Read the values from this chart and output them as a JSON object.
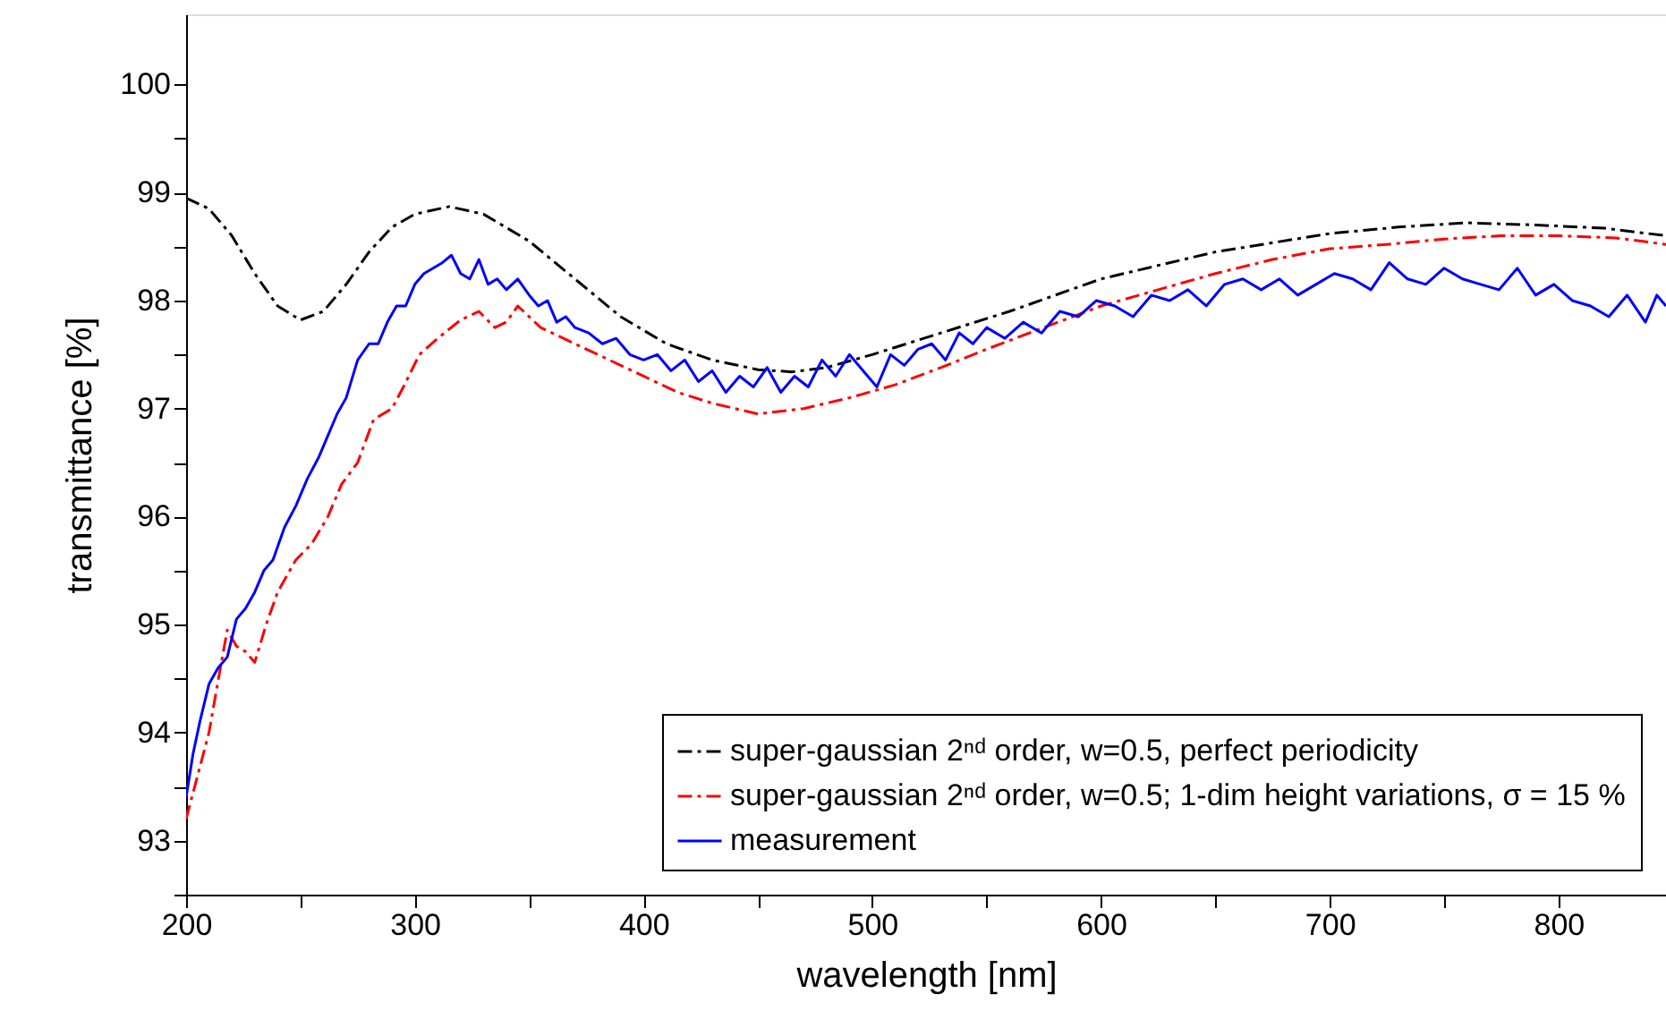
{
  "chart_data": {
    "type": "line",
    "xlabel": "wavelength [nm]",
    "ylabel": "transmittance [%]",
    "xlim": [
      200,
      847
    ],
    "ylim": [
      92.5,
      100.65
    ],
    "xticks": [
      200,
      {
        "value": 250,
        "label": null
      },
      300,
      {
        "value": 350,
        "label": null
      },
      400,
      {
        "value": 450,
        "label": null
      },
      500,
      {
        "value": 550,
        "label": null
      },
      600,
      {
        "value": 650,
        "label": null
      },
      700,
      {
        "value": 750,
        "label": null
      },
      800
    ],
    "yticks": [
      {
        "value": 92.5,
        "label": null
      },
      93,
      {
        "value": 93.5,
        "label": null
      },
      94,
      {
        "value": 94.5,
        "label": null
      },
      95,
      {
        "value": 95.5,
        "label": null
      },
      96,
      {
        "value": 96.5,
        "label": null
      },
      97,
      {
        "value": 97.5,
        "label": null
      },
      98,
      {
        "value": 98.5,
        "label": null
      },
      99,
      {
        "value": 99.5,
        "label": null
      },
      100
    ],
    "grid": false,
    "legend": "bottom right",
    "series": [
      {
        "name": "super-gaussian 2ⁿᵈ order, w=0.5, perfect periodicity",
        "color": "#000000",
        "line_style": "dashdot",
        "x": [
          200,
          210,
          220,
          230,
          240,
          250,
          260,
          270,
          280,
          290,
          300,
          315,
          330,
          350,
          370,
          390,
          410,
          430,
          450,
          465,
          480,
          500,
          530,
          560,
          600,
          650,
          700,
          730,
          760,
          790,
          820,
          847
        ],
        "values": [
          98.95,
          98.85,
          98.6,
          98.25,
          97.95,
          97.82,
          97.9,
          98.15,
          98.45,
          98.68,
          98.8,
          98.87,
          98.8,
          98.55,
          98.2,
          97.85,
          97.6,
          97.45,
          97.36,
          97.34,
          97.38,
          97.5,
          97.7,
          97.9,
          98.2,
          98.45,
          98.62,
          98.68,
          98.72,
          98.7,
          98.67,
          98.6
        ]
      },
      {
        "name": "super-gaussian 2ⁿᵈ order, w=0.5; 1-dim height variations, σ = 15 %",
        "color": "#ff0000",
        "line_style": "dashdot",
        "x": [
          200,
          205,
          210,
          215,
          218,
          222,
          226,
          230,
          235,
          240,
          248,
          255,
          262,
          268,
          275,
          282,
          290,
          295,
          302,
          310,
          320,
          328,
          335,
          340,
          345,
          355,
          370,
          385,
          400,
          415,
          430,
          450,
          470,
          490,
          510,
          530,
          550,
          575,
          600,
          625,
          650,
          675,
          700,
          725,
          750,
          775,
          800,
          825,
          847
        ],
        "values": [
          93.2,
          93.6,
          94.0,
          94.6,
          94.95,
          94.8,
          94.75,
          94.65,
          95.0,
          95.3,
          95.6,
          95.75,
          96.0,
          96.3,
          96.5,
          96.9,
          97.0,
          97.2,
          97.5,
          97.65,
          97.82,
          97.9,
          97.75,
          97.8,
          97.95,
          97.75,
          97.6,
          97.45,
          97.3,
          97.15,
          97.05,
          96.95,
          97.0,
          97.1,
          97.22,
          97.38,
          97.55,
          97.75,
          97.95,
          98.1,
          98.25,
          98.38,
          98.48,
          98.52,
          98.57,
          98.6,
          98.6,
          98.58,
          98.52
        ]
      },
      {
        "name": "measurement",
        "color": "#0000ff",
        "line_style": "solid",
        "x": [
          200,
          203,
          206,
          210,
          214,
          218,
          222,
          226,
          230,
          234,
          238,
          243,
          248,
          253,
          258,
          262,
          266,
          270,
          275,
          280,
          284,
          288,
          292,
          296,
          300,
          304,
          308,
          312,
          316,
          320,
          324,
          328,
          332,
          336,
          340,
          345,
          350,
          354,
          358,
          362,
          366,
          370,
          376,
          382,
          388,
          394,
          400,
          406,
          412,
          418,
          424,
          430,
          436,
          442,
          448,
          454,
          460,
          466,
          472,
          478,
          484,
          490,
          496,
          502,
          508,
          514,
          520,
          526,
          532,
          538,
          544,
          550,
          558,
          566,
          574,
          582,
          590,
          598,
          606,
          614,
          622,
          630,
          638,
          646,
          654,
          662,
          670,
          678,
          686,
          694,
          702,
          710,
          718,
          726,
          734,
          742,
          750,
          758,
          766,
          774,
          782,
          790,
          798,
          806,
          814,
          822,
          830,
          838,
          843,
          847
        ],
        "values": [
          93.4,
          93.8,
          94.1,
          94.45,
          94.6,
          94.7,
          95.05,
          95.15,
          95.3,
          95.5,
          95.6,
          95.9,
          96.1,
          96.35,
          96.55,
          96.75,
          96.95,
          97.1,
          97.45,
          97.6,
          97.6,
          97.8,
          97.95,
          97.95,
          98.15,
          98.25,
          98.3,
          98.35,
          98.42,
          98.25,
          98.2,
          98.38,
          98.15,
          98.2,
          98.1,
          98.2,
          98.05,
          97.95,
          98.0,
          97.8,
          97.85,
          97.75,
          97.7,
          97.6,
          97.65,
          97.5,
          97.45,
          97.5,
          97.35,
          97.45,
          97.25,
          97.35,
          97.15,
          97.3,
          97.2,
          97.38,
          97.15,
          97.3,
          97.2,
          97.45,
          97.3,
          97.5,
          97.35,
          97.2,
          97.5,
          97.4,
          97.55,
          97.6,
          97.45,
          97.7,
          97.6,
          97.75,
          97.65,
          97.8,
          97.7,
          97.9,
          97.85,
          98.0,
          97.95,
          97.85,
          98.05,
          98.0,
          98.1,
          97.95,
          98.15,
          98.2,
          98.1,
          98.2,
          98.05,
          98.15,
          98.25,
          98.2,
          98.1,
          98.35,
          98.2,
          98.15,
          98.3,
          98.2,
          98.15,
          98.1,
          98.3,
          98.05,
          98.15,
          98.0,
          97.95,
          97.85,
          98.05,
          97.8,
          98.05,
          97.95
        ]
      }
    ]
  }
}
